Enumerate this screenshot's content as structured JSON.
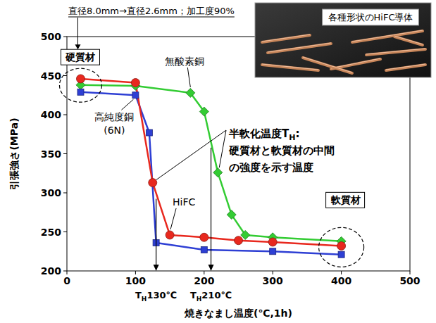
{
  "chart_data": {
    "type": "line",
    "title": "直径8.0mm→直径2.6mm；加工度90%",
    "x_label": "焼きなまし温度(℃,1h)",
    "y_label": "引張強さ(MPa)",
    "xlim": [
      0,
      500
    ],
    "xticks": [
      0,
      100,
      200,
      300,
      400,
      500
    ],
    "ylim": [
      200,
      500
    ],
    "yticks": [
      200,
      250,
      300,
      350,
      400,
      450,
      500
    ],
    "grid": false,
    "series": [
      {
        "name": "無酸素銅",
        "color": "#33cc33",
        "marker": "diamond",
        "line_style": "solid",
        "x": [
          20,
          100,
          180,
          200,
          220,
          240,
          260,
          300,
          400
        ],
        "values": [
          438,
          437,
          428,
          404,
          326,
          272,
          246,
          243,
          238
        ]
      },
      {
        "name": "高純度銅\n(6N)",
        "color": "#2e3fd4",
        "marker": "square",
        "line_style": "solid",
        "x": [
          20,
          100,
          120,
          130,
          200,
          300,
          400
        ],
        "values": [
          429,
          425,
          377,
          236,
          227,
          225,
          221
        ]
      },
      {
        "name": "HiFC",
        "color": "#e8281e",
        "marker": "circle",
        "line_style": "solid",
        "x": [
          20,
          100,
          125,
          150,
          200,
          250,
          300,
          400
        ],
        "values": [
          446,
          441,
          313,
          246,
          243,
          239,
          237,
          232
        ]
      }
    ],
    "hard_label": "硬質材",
    "soft_label": "軟質材",
    "note": [
      "半軟化温度TH:",
      "硬質材と軟質材の中間",
      "の強度を示す温度"
    ],
    "th_markers": [
      {
        "value": 130,
        "label": "TH130℃"
      },
      {
        "value": 210,
        "label": "TH210℃"
      }
    ],
    "inset_caption": "各種形状のHiFC導体"
  }
}
